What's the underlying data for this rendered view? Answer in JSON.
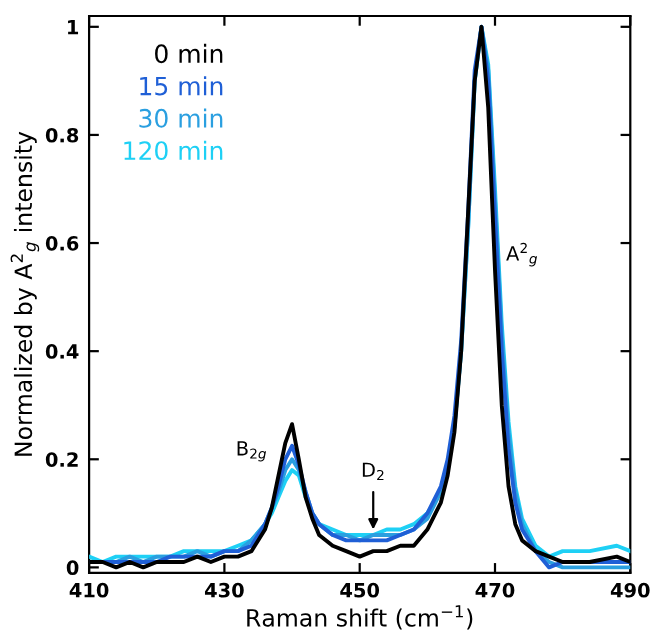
{
  "chart_data": {
    "type": "line",
    "xlabel": "Raman shift (cm$^{−1}$)",
    "ylabel": "Normalized by A$^{2}$$_{g}$ intensity",
    "x": [
      410,
      412,
      414,
      416,
      418,
      420,
      422,
      424,
      426,
      428,
      430,
      432,
      434,
      436,
      437,
      438,
      439,
      440,
      441,
      442,
      443,
      444,
      446,
      448,
      450,
      452,
      454,
      456,
      458,
      460,
      462,
      463,
      464,
      465,
      466,
      467,
      468,
      469,
      470,
      471,
      472,
      473,
      474,
      476,
      478,
      480,
      484,
      488,
      490
    ],
    "series": [
      {
        "name": "0 min",
        "color": "#000000",
        "values": [
          0.01,
          0.01,
          0.0,
          0.01,
          0.0,
          0.01,
          0.01,
          0.01,
          0.02,
          0.01,
          0.02,
          0.02,
          0.03,
          0.07,
          0.11,
          0.17,
          0.23,
          0.265,
          0.2,
          0.13,
          0.09,
          0.06,
          0.04,
          0.03,
          0.02,
          0.03,
          0.03,
          0.04,
          0.04,
          0.07,
          0.12,
          0.17,
          0.25,
          0.4,
          0.65,
          0.9,
          1.0,
          0.85,
          0.55,
          0.3,
          0.15,
          0.08,
          0.05,
          0.03,
          0.02,
          0.01,
          0.01,
          0.02,
          0.01
        ]
      },
      {
        "name": "15 min",
        "color": "#1f5fd6",
        "values": [
          0.01,
          0.01,
          0.01,
          0.01,
          0.01,
          0.01,
          0.02,
          0.02,
          0.02,
          0.02,
          0.03,
          0.03,
          0.04,
          0.08,
          0.11,
          0.15,
          0.2,
          0.225,
          0.19,
          0.14,
          0.1,
          0.08,
          0.06,
          0.05,
          0.05,
          0.05,
          0.05,
          0.06,
          0.07,
          0.1,
          0.15,
          0.2,
          0.28,
          0.42,
          0.65,
          0.92,
          1.0,
          0.9,
          0.65,
          0.4,
          0.22,
          0.12,
          0.07,
          0.03,
          0.0,
          0.01,
          0.01,
          0.01,
          0.01
        ]
      },
      {
        "name": "30 min",
        "color": "#2a9fe0",
        "values": [
          0.01,
          0.01,
          0.01,
          0.02,
          0.01,
          0.02,
          0.02,
          0.02,
          0.03,
          0.02,
          0.03,
          0.03,
          0.05,
          0.08,
          0.11,
          0.14,
          0.18,
          0.2,
          0.18,
          0.14,
          0.1,
          0.08,
          0.06,
          0.06,
          0.05,
          0.06,
          0.06,
          0.06,
          0.07,
          0.09,
          0.14,
          0.19,
          0.26,
          0.4,
          0.62,
          0.9,
          1.0,
          0.92,
          0.68,
          0.43,
          0.25,
          0.14,
          0.08,
          0.03,
          0.01,
          0.0,
          0.0,
          0.0,
          0.0
        ]
      },
      {
        "name": "120 min",
        "color": "#1ed0f5",
        "values": [
          0.02,
          0.01,
          0.02,
          0.02,
          0.02,
          0.02,
          0.02,
          0.03,
          0.03,
          0.03,
          0.03,
          0.04,
          0.05,
          0.08,
          0.1,
          0.13,
          0.16,
          0.18,
          0.17,
          0.13,
          0.1,
          0.08,
          0.07,
          0.06,
          0.06,
          0.06,
          0.07,
          0.07,
          0.08,
          0.1,
          0.14,
          0.19,
          0.26,
          0.4,
          0.62,
          0.9,
          1.0,
          0.93,
          0.7,
          0.45,
          0.27,
          0.15,
          0.09,
          0.04,
          0.02,
          0.03,
          0.03,
          0.04,
          0.03
        ]
      }
    ],
    "xlim": [
      410,
      490
    ],
    "ylim": [
      -0.01,
      1.02
    ],
    "xticks": [
      410,
      430,
      450,
      470,
      490
    ],
    "yticks": [
      0,
      0.2,
      0.4,
      0.6,
      0.8,
      1
    ],
    "annotations": [
      "B$_{2g}$",
      {
        "text": "D$_{2}$",
        "x": 452,
        "y": 0.06
      },
      "A$^{2}$$_{g}$"
    ],
    "grid": false,
    "legend": "top left",
    "marker": "none",
    "line_style": "solid"
  }
}
